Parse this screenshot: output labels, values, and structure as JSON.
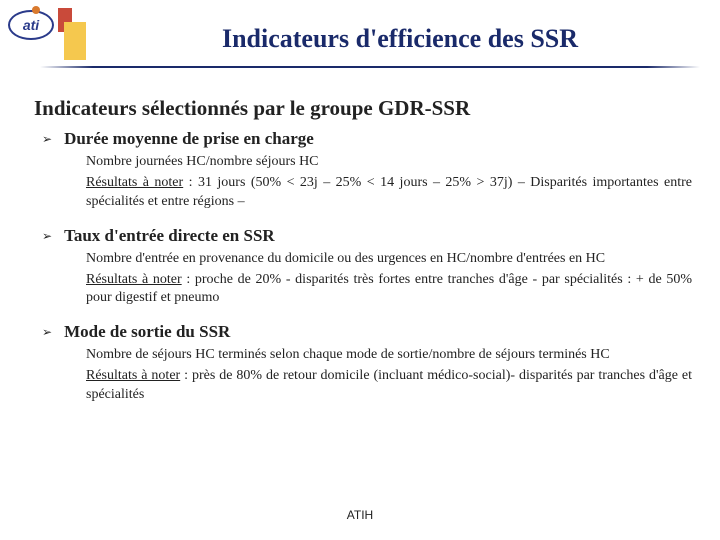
{
  "logo_text": "ati",
  "main_title": "Indicateurs d'efficience des SSR",
  "subtitle": "Indicateurs sélectionnés par le groupe GDR-SSR",
  "items": [
    {
      "title": "Durée moyenne de prise en charge",
      "line1": "Nombre journées HC/nombre séjours HC",
      "res_label": "Résultats à noter",
      "res_text": " : 31 jours (50% < 23j – 25% < 14 jours – 25% > 37j) – Disparités importantes entre spécialités et entre régions –"
    },
    {
      "title": "Taux d'entrée directe en SSR",
      "line1": "Nombre d'entrée en provenance du domicile ou des urgences en HC/nombre d'entrées en HC",
      "res_label": "Résultats à noter",
      "res_text": " : proche de 20% - disparités très fortes entre tranches d'âge - par spécialités : + de 50% pour digestif et pneumo"
    },
    {
      "title": "Mode de sortie du SSR",
      "line1": "Nombre de séjours HC terminés selon chaque mode de sortie/nombre de séjours terminés HC",
      "res_label": "Résultats à noter",
      "res_text": " : près de 80% de retour domicile (incluant médico-social)- disparités par tranches d'âge et spécialités"
    }
  ],
  "footer": "ATIH",
  "colors": {
    "title": "#1a2a6a",
    "red_block": "#c94a3a",
    "yellow_block": "#f5c84e",
    "orange_dot": "#d97a2e"
  }
}
